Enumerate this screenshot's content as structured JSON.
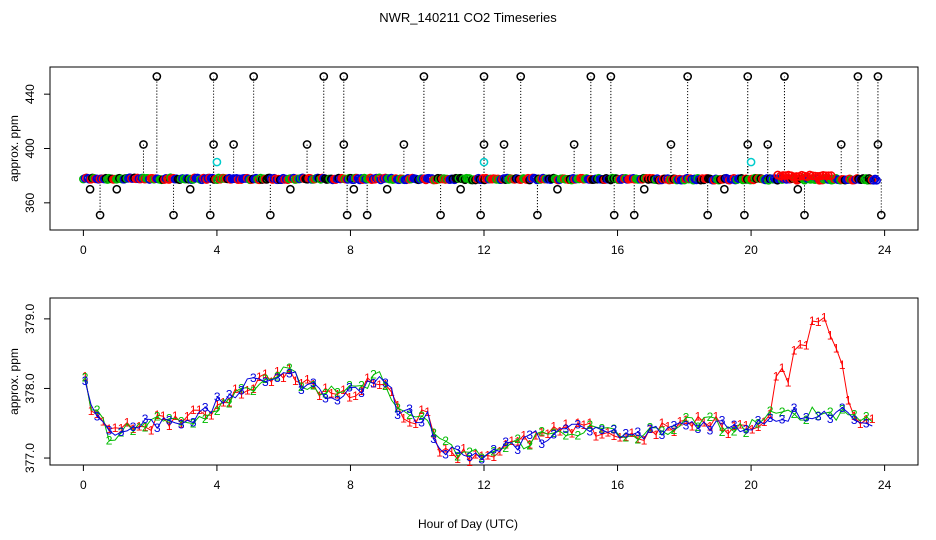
{
  "title": "NWR_140211  CO2 Timeseries",
  "xlabel": "Hour of Day (UTC)",
  "colors": {
    "circle": "#000000",
    "series1": "#ff0000",
    "series2": "#00bb00",
    "series3": "#0000dd",
    "highlight": "#00cccc"
  },
  "chart_data": [
    {
      "type": "scatter",
      "panel": "top",
      "ylabel": "approx. ppm",
      "xlim": [
        -1,
        25
      ],
      "ylim": [
        340,
        460
      ],
      "xticks": [
        0,
        4,
        8,
        12,
        16,
        20,
        24
      ],
      "xtick_labels": [
        "0",
        "4",
        "8",
        "12",
        "16",
        "20",
        "24"
      ],
      "yticks": [
        360,
        400,
        440
      ],
      "ytick_labels": [
        "360",
        "400",
        "440"
      ],
      "baseline_start": 377.8,
      "baseline_end": 377.3,
      "spike_high_x": [
        2.2,
        3.9,
        5.1,
        7.2,
        7.8,
        10.2,
        12.0,
        13.1,
        15.2,
        15.8,
        18.1,
        19.9,
        21.0,
        23.2,
        23.8
      ],
      "spike_high_y": 453,
      "spike_low_x": [
        0.5,
        2.7,
        3.8,
        5.6,
        7.9,
        8.5,
        10.7,
        11.9,
        13.6,
        15.9,
        16.5,
        18.7,
        19.8,
        21.6,
        23.9
      ],
      "spike_low_y": 351,
      "spike_mid_x": [
        1.8,
        3.9,
        4.5,
        6.7,
        7.8,
        9.6,
        12.0,
        12.6,
        14.7,
        17.6,
        19.9,
        20.5,
        22.7,
        23.8
      ],
      "spike_mid_y": 403,
      "dip_x": [
        0.2,
        1.0,
        3.2,
        6.2,
        8.1,
        9.1,
        11.3,
        14.2,
        16.8,
        19.2,
        21.4
      ],
      "dip_y": 370,
      "cyan_points": [
        [
          4.0,
          390
        ],
        [
          12.0,
          390
        ],
        [
          20.0,
          390
        ]
      ],
      "series1_excursion": {
        "x_start": 20.8,
        "x_end": 22.4,
        "y": 379
      }
    },
    {
      "type": "scatter",
      "panel": "bottom",
      "ylabel": "approx. ppm",
      "xlim": [
        -1,
        25
      ],
      "ylim": [
        376.9,
        379.3
      ],
      "xticks": [
        0,
        4,
        8,
        12,
        16,
        20,
        24
      ],
      "xtick_labels": [
        "0",
        "4",
        "8",
        "12",
        "16",
        "20",
        "24"
      ],
      "yticks": [
        377.0,
        378.0,
        379.0
      ],
      "ytick_labels": [
        "377.0",
        "378.0",
        "379.0"
      ],
      "markers": [
        "1",
        "2",
        "3"
      ],
      "profile": [
        [
          0.0,
          378.3
        ],
        [
          0.15,
          377.8
        ],
        [
          0.6,
          377.6
        ],
        [
          0.8,
          377.3
        ],
        [
          1.5,
          377.45
        ],
        [
          2.5,
          377.55
        ],
        [
          3.6,
          377.6
        ],
        [
          4.2,
          377.85
        ],
        [
          5.0,
          378.05
        ],
        [
          6.0,
          378.25
        ],
        [
          6.8,
          378.0
        ],
        [
          7.8,
          377.9
        ],
        [
          8.5,
          378.05
        ],
        [
          9.0,
          378.2
        ],
        [
          9.5,
          377.6
        ],
        [
          10.3,
          377.6
        ],
        [
          10.6,
          377.2
        ],
        [
          11.4,
          377.05
        ],
        [
          12.0,
          377.05
        ],
        [
          12.7,
          377.15
        ],
        [
          13.6,
          377.3
        ],
        [
          14.5,
          377.4
        ],
        [
          15.5,
          377.4
        ],
        [
          16.2,
          377.3
        ],
        [
          17.0,
          377.35
        ],
        [
          18.0,
          377.5
        ],
        [
          19.0,
          377.5
        ],
        [
          19.6,
          377.4
        ],
        [
          20.3,
          377.55
        ],
        [
          21.5,
          377.65
        ],
        [
          23.0,
          377.65
        ],
        [
          23.7,
          377.5
        ]
      ],
      "series1_excursion": [
        [
          20.5,
          377.7
        ],
        [
          20.8,
          378.1
        ],
        [
          21.2,
          378.3
        ],
        [
          21.5,
          378.6
        ],
        [
          21.8,
          378.95
        ],
        [
          22.0,
          379.1
        ],
        [
          22.2,
          378.95
        ],
        [
          22.4,
          378.7
        ],
        [
          22.7,
          378.2
        ],
        [
          23.0,
          377.9
        ]
      ]
    }
  ]
}
